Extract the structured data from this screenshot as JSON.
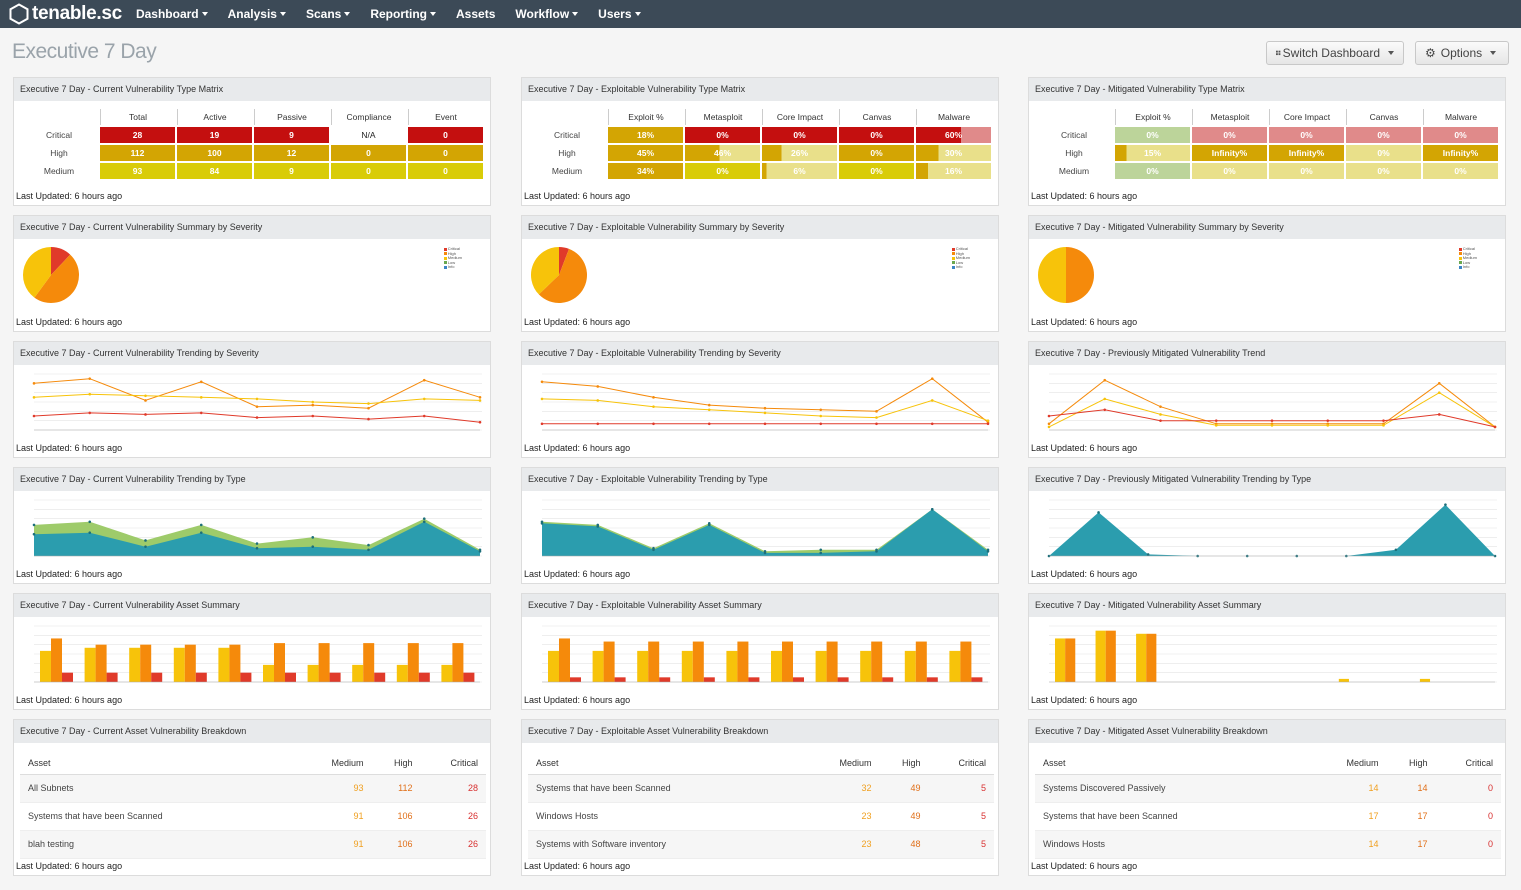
{
  "nav": {
    "logo": "tenable.sc",
    "items": [
      "Dashboard",
      "Analysis",
      "Scans",
      "Reporting",
      "Assets",
      "Workflow",
      "Users"
    ]
  },
  "page": {
    "title": "Executive 7 Day",
    "switch_label": "Switch Dashboard",
    "options_label": "Options"
  },
  "colors": {
    "critical": "#c40f0f",
    "high": "#d3a503",
    "medium": "#d9cc08",
    "pale_red": "#e08a8a",
    "pale_yellow": "#e9e08a",
    "pale_green": "#bcd49a",
    "pie_orange": "#f58a0b",
    "pie_yellow": "#f7c30a",
    "pie_red": "#e03a2a",
    "teal": "#2b9dae",
    "green": "#9ecb6a"
  },
  "footer_text": "Last Updated: 6 hours ago",
  "matrices": [
    {
      "title": "Executive 7 Day - Current Vulnerability Type Matrix",
      "columns": [
        "Total",
        "Active",
        "Passive",
        "Compliance",
        "Event"
      ],
      "rows": [
        {
          "label": "Critical",
          "cells": [
            "28",
            "19",
            "9",
            "N/A",
            "0"
          ],
          "styles": [
            "critical",
            "critical",
            "critical",
            "none",
            "critical"
          ]
        },
        {
          "label": "High",
          "cells": [
            "112",
            "100",
            "12",
            "0",
            "0"
          ],
          "styles": [
            "high",
            "high",
            "high",
            "high",
            "high"
          ]
        },
        {
          "label": "Medium",
          "cells": [
            "93",
            "84",
            "9",
            "0",
            "0"
          ],
          "styles": [
            "medium",
            "medium",
            "medium",
            "medium",
            "medium"
          ]
        }
      ]
    },
    {
      "title": "Executive 7 Day - Exploitable Vulnerability Type Matrix",
      "columns": [
        "Exploit %",
        "Metasploit",
        "Core Impact",
        "Canvas",
        "Malware"
      ],
      "rows": [
        {
          "label": "Critical",
          "cells": [
            "18%",
            "0%",
            "0%",
            "0%",
            "60%"
          ],
          "styles": [
            "high",
            "critical",
            "critical",
            "critical",
            "pale_red"
          ],
          "fills": [
            1,
            1,
            1,
            1,
            0.6
          ]
        },
        {
          "label": "High",
          "cells": [
            "45%",
            "46%",
            "26%",
            "0%",
            "30%"
          ],
          "styles": [
            "high",
            "pale_yellow",
            "pale_yellow",
            "high",
            "pale_yellow"
          ],
          "fills": [
            1,
            0.46,
            0.26,
            1,
            0.3
          ]
        },
        {
          "label": "Medium",
          "cells": [
            "34%",
            "0%",
            "6%",
            "0%",
            "16%"
          ],
          "styles": [
            "high",
            "medium",
            "pale_yellow",
            "medium",
            "pale_yellow"
          ],
          "fills": [
            1,
            1,
            0.06,
            1,
            0.16
          ]
        }
      ]
    },
    {
      "title": "Executive 7 Day - Mitigated Vulnerability Type Matrix",
      "columns": [
        "Exploit %",
        "Metasploit",
        "Core Impact",
        "Canvas",
        "Malware"
      ],
      "rows": [
        {
          "label": "Critical",
          "cells": [
            "0%",
            "0%",
            "0%",
            "0%",
            "0%"
          ],
          "styles": [
            "pale_green",
            "pale_red",
            "pale_red",
            "pale_red",
            "pale_red"
          ]
        },
        {
          "label": "High",
          "cells": [
            "15%",
            "Infinity%",
            "Infinity%",
            "0%",
            "Infinity%"
          ],
          "styles": [
            "pale_yellow",
            "high",
            "high",
            "pale_yellow",
            "high"
          ],
          "fills": [
            0.15,
            1,
            1,
            1,
            1
          ]
        },
        {
          "label": "Medium",
          "cells": [
            "0%",
            "0%",
            "0%",
            "0%",
            "0%"
          ],
          "styles": [
            "pale_green",
            "pale_yellow",
            "pale_yellow",
            "pale_yellow",
            "pale_yellow"
          ]
        }
      ]
    }
  ],
  "summary_titles": [
    "Executive 7 Day - Current Vulnerability Summary by Severity",
    "Executive 7 Day - Exploitable Vulnerability Summary by Severity",
    "Executive 7 Day - Mitigated Vulnerability Summary by Severity"
  ],
  "trend_sev_titles": [
    "Executive 7 Day - Current Vulnerability Trending by Severity",
    "Executive 7 Day - Exploitable Vulnerability Trending by Severity",
    "Executive 7 Day - Previously Mitigated Vulnerability Trend"
  ],
  "trend_type_titles": [
    "Executive 7 Day - Current Vulnerability Trending by Type",
    "Executive 7 Day - Exploitable Vulnerability Trending by Type",
    "Executive 7 Day - Previously Mitigated Vulnerability Trending by Type"
  ],
  "asset_titles": [
    "Executive 7 Day - Current Vulnerability Asset Summary",
    "Executive 7 Day - Exploitable Vulnerability Asset Summary",
    "Executive 7 Day - Mitigated Vulnerability Asset Summary"
  ],
  "chart_data": [
    {
      "type": "pie",
      "labels": [
        "Critical",
        "High",
        "Medium",
        "Low",
        "Info"
      ],
      "values": [
        28,
        112,
        93,
        0,
        0
      ]
    },
    {
      "type": "pie",
      "labels": [
        "Critical",
        "High",
        "Medium",
        "Low",
        "Info"
      ],
      "values": [
        5,
        49,
        32,
        0,
        0
      ]
    },
    {
      "type": "pie",
      "labels": [
        "Critical",
        "High",
        "Medium",
        "Low",
        "Info"
      ],
      "values": [
        0,
        14,
        14,
        0,
        0
      ]
    },
    {
      "type": "line",
      "series": [
        {
          "values": [
            60,
            66,
            38,
            62,
            30,
            32,
            28,
            64,
            42
          ]
        },
        {
          "values": [
            42,
            46,
            44,
            42,
            40,
            36,
            34,
            40,
            38
          ]
        },
        {
          "values": [
            18,
            22,
            20,
            22,
            16,
            18,
            14,
            18,
            10
          ]
        }
      ]
    },
    {
      "type": "line",
      "series": [
        {
          "values": [
            62,
            56,
            42,
            32,
            28,
            26,
            24,
            66,
            10
          ]
        },
        {
          "values": [
            40,
            38,
            30,
            26,
            22,
            18,
            16,
            38,
            12
          ]
        },
        {
          "values": [
            8,
            8,
            8,
            8,
            8,
            8,
            8,
            8,
            8
          ]
        }
      ]
    },
    {
      "type": "line",
      "series": [
        {
          "values": [
            8,
            64,
            30,
            8,
            8,
            8,
            8,
            60,
            4
          ]
        },
        {
          "values": [
            4,
            40,
            20,
            6,
            6,
            6,
            6,
            48,
            4
          ]
        },
        {
          "values": [
            18,
            26,
            12,
            12,
            12,
            12,
            12,
            20,
            4
          ]
        }
      ]
    },
    {
      "type": "area",
      "series": [
        {
          "values": [
            40,
            44,
            20,
            40,
            16,
            24,
            14,
            48,
            8
          ]
        },
        {
          "values": [
            28,
            30,
            12,
            30,
            10,
            12,
            8,
            44,
            6
          ]
        }
      ]
    },
    {
      "type": "area",
      "series": [
        {
          "values": [
            44,
            40,
            10,
            42,
            6,
            8,
            8,
            60,
            8
          ]
        },
        {
          "values": [
            42,
            38,
            8,
            40,
            4,
            4,
            6,
            60,
            6
          ]
        }
      ]
    },
    {
      "type": "area",
      "series": [
        {
          "values": [
            0,
            56,
            2,
            0,
            0,
            0,
            0,
            8,
            66,
            0
          ]
        }
      ]
    },
    {
      "type": "bar",
      "series": [
        {
          "values": [
            40,
            44,
            44,
            44,
            44,
            22,
            22,
            22,
            22,
            22
          ]
        },
        {
          "values": [
            56,
            48,
            48,
            48,
            48,
            50,
            50,
            50,
            50,
            50
          ]
        },
        {
          "values": [
            12,
            12,
            12,
            12,
            12,
            12,
            12,
            12,
            12,
            12
          ]
        }
      ]
    },
    {
      "type": "bar",
      "series": [
        {
          "values": [
            40,
            40,
            40,
            40,
            40,
            40,
            40,
            40,
            40,
            40
          ]
        },
        {
          "values": [
            56,
            52,
            52,
            52,
            52,
            52,
            52,
            52,
            52,
            52
          ]
        },
        {
          "values": [
            6,
            6,
            6,
            6,
            6,
            6,
            6,
            6,
            6,
            6
          ]
        }
      ]
    },
    {
      "type": "bar",
      "series": [
        {
          "values": [
            56,
            66,
            62,
            0,
            0,
            0,
            0,
            4,
            0,
            4,
            0
          ]
        },
        {
          "values": [
            56,
            66,
            62,
            0,
            0,
            0,
            0,
            0,
            0,
            0,
            0
          ]
        },
        {
          "values": [
            0,
            0,
            0,
            0,
            0,
            0,
            0,
            0,
            0,
            0,
            0
          ]
        }
      ]
    }
  ],
  "breakdowns": [
    {
      "title": "Executive 7 Day - Current Asset Vulnerability Breakdown",
      "headers": [
        "Asset",
        "Medium",
        "High",
        "Critical"
      ],
      "rows": [
        [
          "All Subnets",
          "93",
          "112",
          "28"
        ],
        [
          "Systems that have been Scanned",
          "91",
          "106",
          "26"
        ],
        [
          "blah testing",
          "91",
          "106",
          "26"
        ]
      ]
    },
    {
      "title": "Executive 7 Day - Exploitable Asset Vulnerability Breakdown",
      "headers": [
        "Asset",
        "Medium",
        "High",
        "Critical"
      ],
      "rows": [
        [
          "Systems that have been Scanned",
          "32",
          "49",
          "5"
        ],
        [
          "Windows Hosts",
          "23",
          "49",
          "5"
        ],
        [
          "Systems with Software inventory",
          "23",
          "48",
          "5"
        ]
      ]
    },
    {
      "title": "Executive 7 Day - Mitigated Asset Vulnerability Breakdown",
      "headers": [
        "Asset",
        "Medium",
        "High",
        "Critical"
      ],
      "rows": [
        [
          "Systems Discovered Passively",
          "14",
          "14",
          "0"
        ],
        [
          "Systems that have been Scanned",
          "17",
          "17",
          "0"
        ],
        [
          "Windows Hosts",
          "14",
          "17",
          "0"
        ]
      ]
    }
  ]
}
